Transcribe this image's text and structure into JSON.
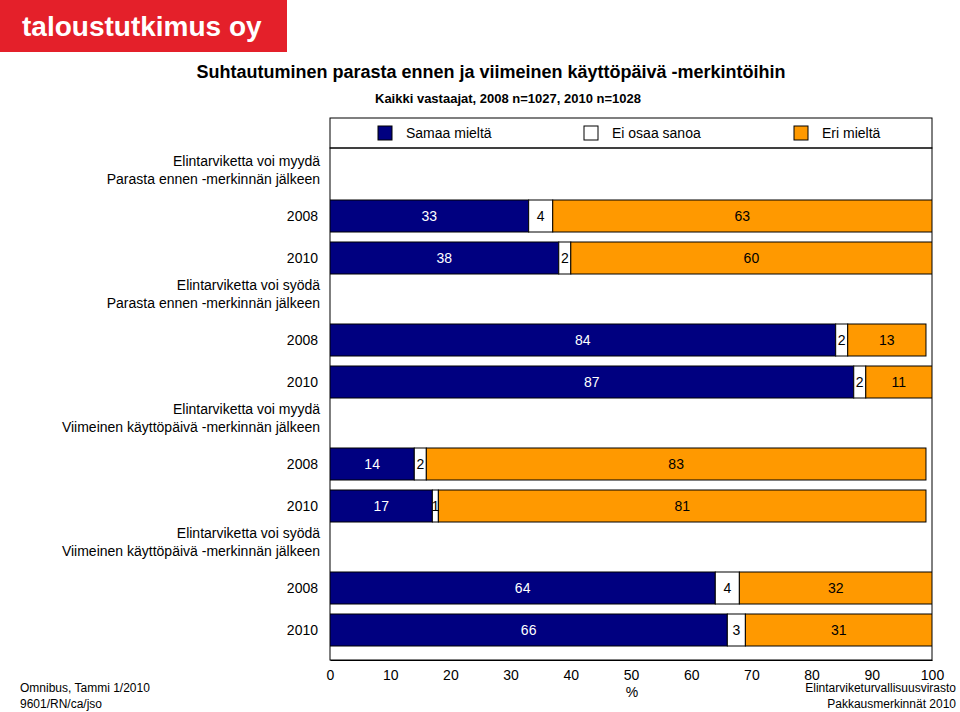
{
  "chart_data": {
    "type": "bar",
    "orientation": "horizontal",
    "stacked": true,
    "data_labels": true,
    "legend": "top",
    "logo": "taloustutkimus oy",
    "title": "Suhtautuminen parasta ennen ja viimeinen käyttöpäivä -merkintöihin",
    "subtitle": "Kaikki vastaajat, 2008 n=1027, 2010 n=1028",
    "group_labels": [
      [
        "Elintarviketta voi myydä",
        "Parasta ennen -merkinnän jälkeen"
      ],
      [
        "Elintarviketta voi syödä",
        "Parasta ennen -merkinnän jälkeen"
      ],
      [
        "Elintarviketta voi myydä",
        "Viimeinen käyttöpäivä -merkinnän jälkeen"
      ],
      [
        "Elintarviketta voi syödä",
        "Viimeinen käyttöpäivä -merkinnän jälkeen"
      ]
    ],
    "categories": [
      "2008",
      "2010",
      "2008",
      "2010",
      "2008",
      "2010",
      "2008",
      "2010"
    ],
    "series": [
      {
        "name": "Samaa mieltä",
        "color": "#000080",
        "values": [
          33,
          38,
          84,
          87,
          14,
          17,
          64,
          66
        ]
      },
      {
        "name": "Ei osaa sanoa",
        "color": "#ffffff",
        "values": [
          4,
          2,
          2,
          2,
          2,
          1,
          4,
          3
        ]
      },
      {
        "name": "Eri mieltä",
        "color": "#ff9900",
        "values": [
          63,
          60,
          13,
          11,
          83,
          81,
          32,
          31
        ]
      }
    ],
    "xlim": [
      0,
      100
    ],
    "xticks": [
      0,
      10,
      20,
      30,
      40,
      50,
      60,
      70,
      80,
      90,
      100
    ],
    "xlabel": "%",
    "notes_left": [
      "Omnibus, Tammi 1/2010",
      "9601/RN/ca/jso"
    ],
    "notes_right": [
      "Elintarviketurvallisuusvirasto",
      "Pakkausmerkinnät 2010"
    ]
  }
}
